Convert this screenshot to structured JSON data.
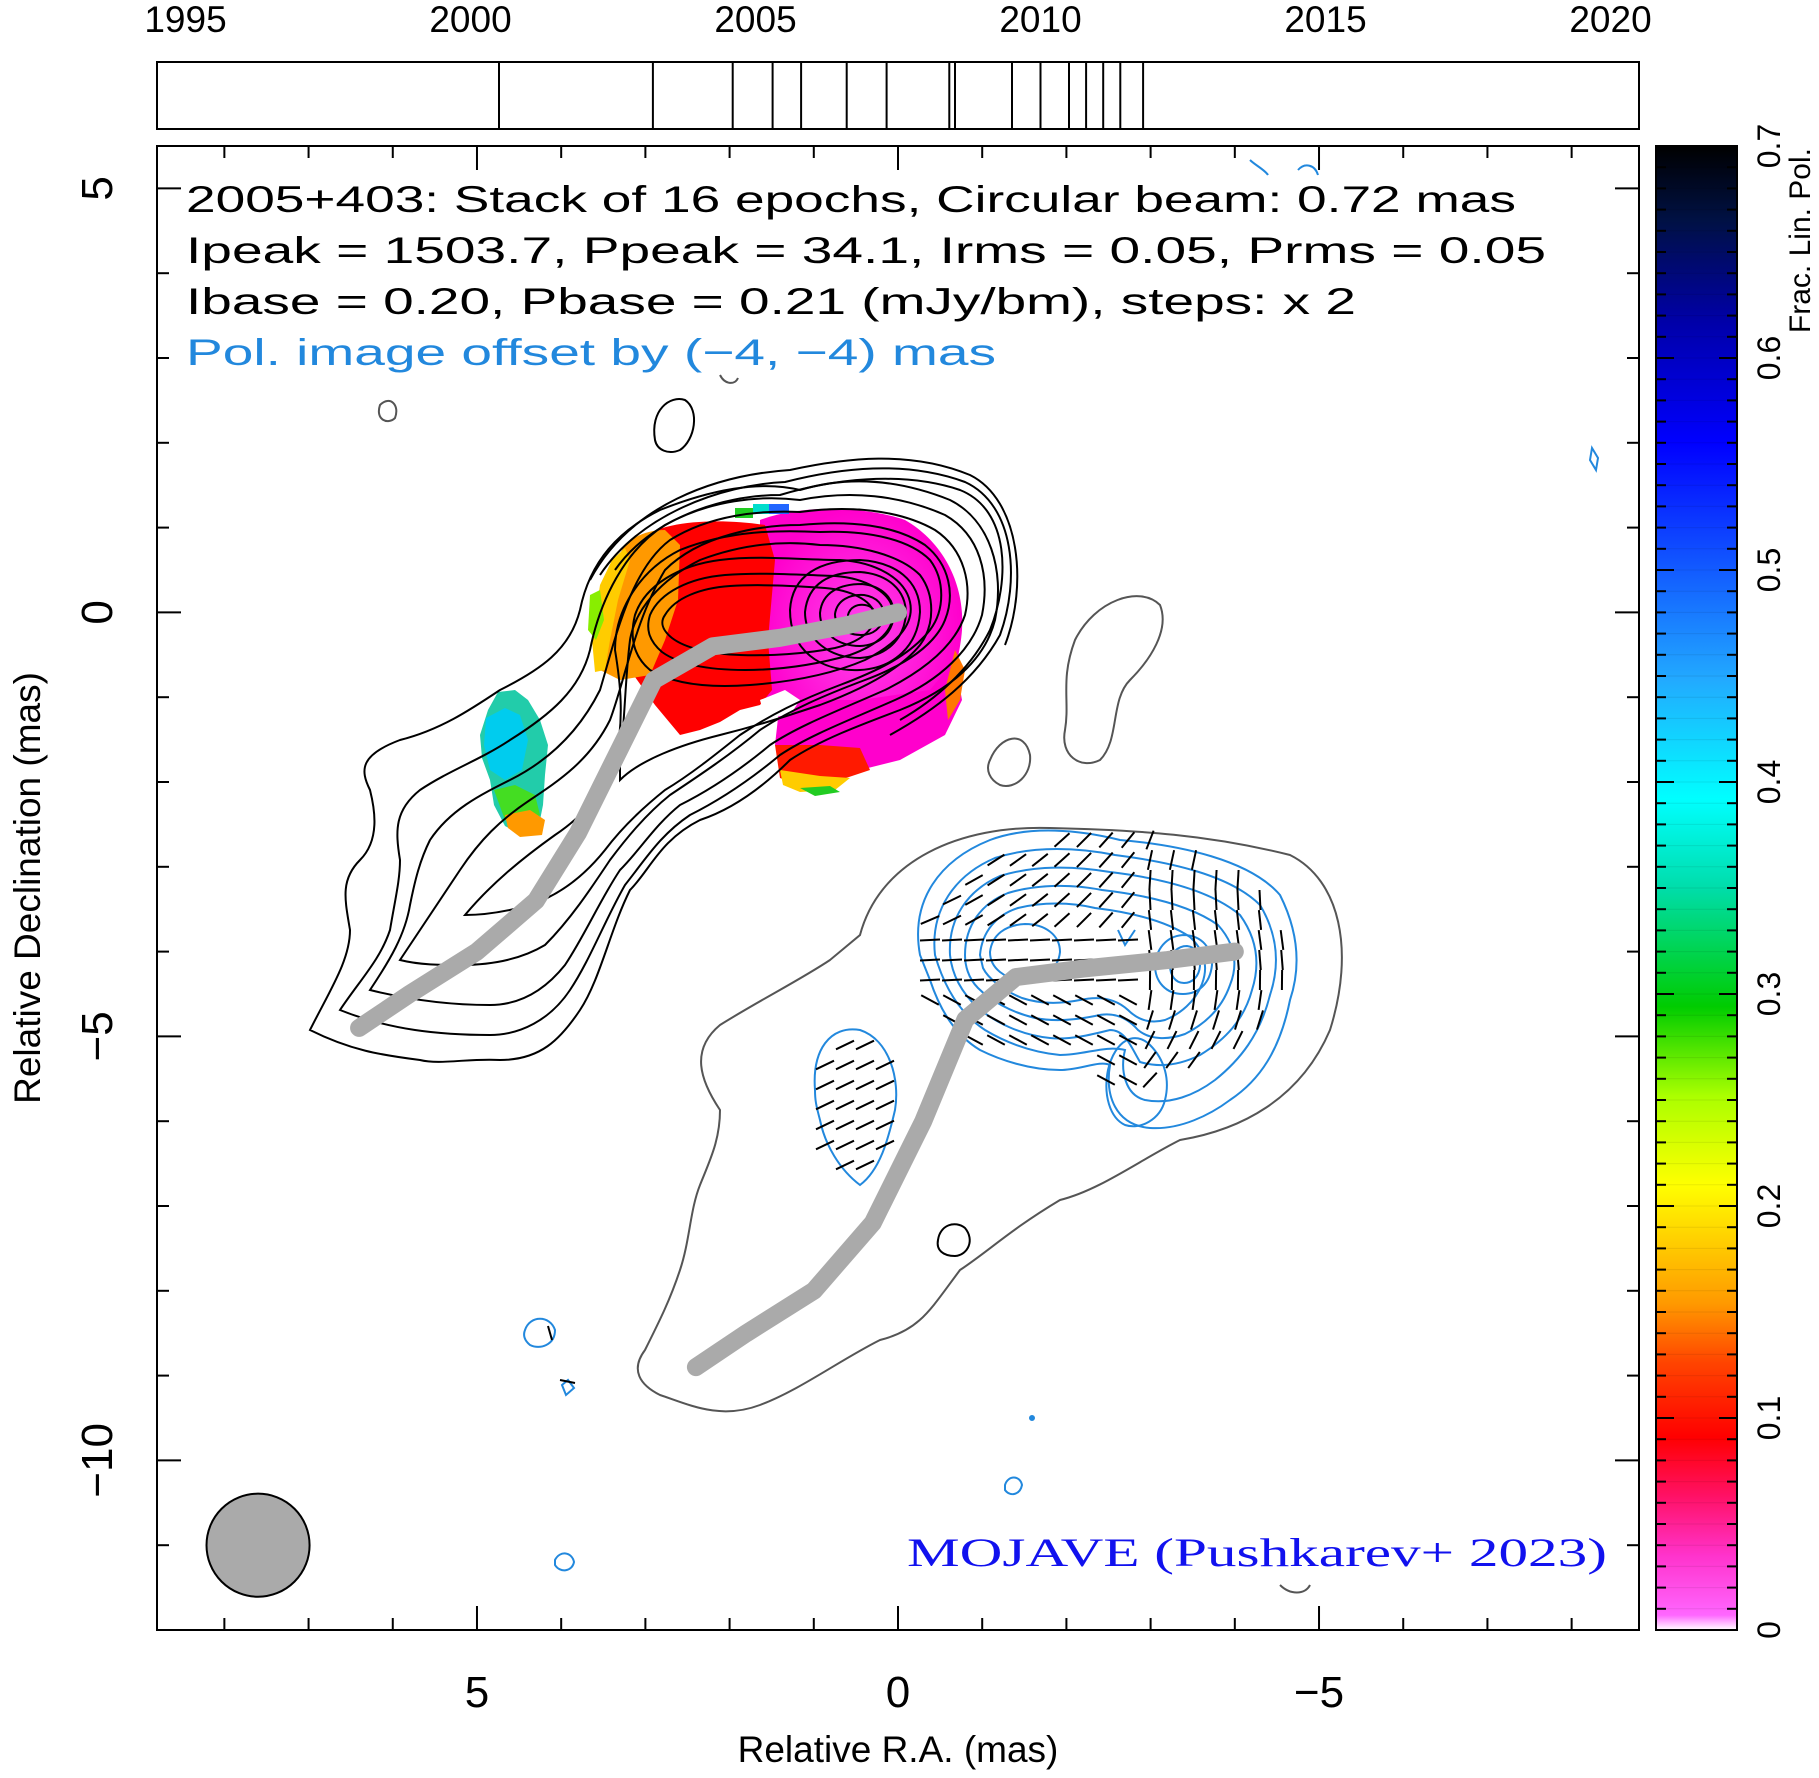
{
  "chart_data": {
    "type": "heatmap",
    "title": "2005+403: Stack of 16 epochs, Circular beam: 0.72 mas",
    "info_lines": [
      "Ipeak = 1503.7, Ppeak = 34.1, Irms = 0.05, Prms = 0.05",
      "Ibase = 0.20, Pbase = 0.21 (mJy/bm), steps: x 2"
    ],
    "offset_note": "Pol. image offset by (−4, −4) mas",
    "credit": "MOJAVE (Pushkarev+ 2023)",
    "xlabel": "Relative R.A. (mas)",
    "ylabel": "Relative Declination (mas)",
    "xlim": [
      8.8,
      -8.8
    ],
    "ylim": [
      -12.0,
      5.5
    ],
    "x_ticks": [
      5,
      0,
      -5
    ],
    "x_tick_labels": [
      "5",
      "0",
      "−5"
    ],
    "y_ticks": [
      5,
      0,
      -5,
      -10
    ],
    "y_tick_labels": [
      "5",
      "0",
      "−5",
      "−10"
    ],
    "epoch_axis": {
      "range": [
        1994.5,
        2020.5
      ],
      "ticks": [
        1995,
        2000,
        2005,
        2010,
        2015,
        2020
      ],
      "tick_labels": [
        "1995",
        "2000",
        "2005",
        "2010",
        "2015",
        "2020"
      ],
      "epochs": [
        2000.5,
        2003.2,
        2004.6,
        2005.3,
        2005.8,
        2006.6,
        2007.3,
        2008.4,
        2008.5,
        2009.5,
        2010.0,
        2010.5,
        2010.8,
        2011.1,
        2011.4,
        2011.8
      ]
    },
    "colorbar": {
      "label": "Frac. Lin. Pol.",
      "range": [
        0,
        0.7
      ],
      "ticks": [
        0,
        0.1,
        0.2,
        0.3,
        0.4,
        0.5,
        0.6,
        0.7
      ],
      "tick_labels": [
        "0",
        "0.1",
        "0.2",
        "0.3",
        "0.4",
        "0.5",
        "0.6",
        "0.7"
      ]
    },
    "ridge_line_total": [
      [
        6.4,
        -4.9
      ],
      [
        5.8,
        -4.5
      ],
      [
        5.0,
        -4.0
      ],
      [
        4.3,
        -3.4
      ],
      [
        3.8,
        -2.6
      ],
      [
        3.3,
        -1.6
      ],
      [
        2.9,
        -0.8
      ],
      [
        2.2,
        -0.4
      ],
      [
        1.4,
        -0.3
      ],
      [
        0.6,
        -0.15
      ],
      [
        0.0,
        0.0
      ]
    ],
    "ridge_line_pol": [
      [
        2.4,
        -8.9
      ],
      [
        1.8,
        -8.5
      ],
      [
        1.0,
        -8.0
      ],
      [
        0.3,
        -7.2
      ],
      [
        -0.3,
        -6.0
      ],
      [
        -0.8,
        -4.8
      ],
      [
        -1.4,
        -4.3
      ],
      [
        -2.2,
        -4.2
      ],
      [
        -3.2,
        -4.1
      ],
      [
        -4.0,
        -4.0
      ]
    ],
    "beam_fwhm_mas": 0.72,
    "beam_center_mas": [
      7.6,
      -11.0
    ]
  },
  "colors": {
    "total_contour": "#000000",
    "pol_contour": "#2288dd",
    "pol_envelope": "#555555",
    "ridge": "#aaaaaa",
    "offset_text": "#2288dd",
    "credit_text": "#1111ee",
    "beam_fill": "#aaaaaa"
  }
}
